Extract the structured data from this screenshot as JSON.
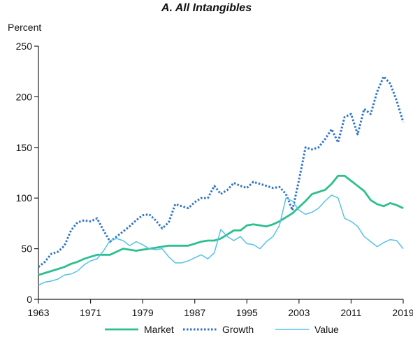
{
  "chart_data": {
    "type": "line",
    "title": "A. All Intangibles",
    "ylabel": "Percent",
    "xlabel": "",
    "xlim": [
      1963,
      2019
    ],
    "ylim": [
      0,
      250
    ],
    "xticks": [
      1963,
      1971,
      1979,
      1987,
      1995,
      2003,
      2011,
      2019
    ],
    "yticks": [
      0,
      50,
      100,
      150,
      200,
      250
    ],
    "grid": false,
    "legend_position": "bottom",
    "series": [
      {
        "name": "Market",
        "color": "#2dbf8f",
        "style": "solid",
        "x": [
          1963,
          1964,
          1965,
          1966,
          1967,
          1968,
          1969,
          1970,
          1971,
          1972,
          1973,
          1974,
          1975,
          1976,
          1977,
          1978,
          1979,
          1980,
          1981,
          1982,
          1983,
          1984,
          1985,
          1986,
          1987,
          1988,
          1989,
          1990,
          1991,
          1992,
          1993,
          1994,
          1995,
          1996,
          1997,
          1998,
          1999,
          2000,
          2001,
          2002,
          2003,
          2004,
          2005,
          2006,
          2007,
          2008,
          2009,
          2010,
          2011,
          2012,
          2013,
          2014,
          2015,
          2016,
          2017,
          2018,
          2019
        ],
        "values": [
          24,
          26,
          28,
          30,
          32,
          35,
          37,
          40,
          42,
          44,
          44,
          44,
          47,
          50,
          49,
          48,
          49,
          50,
          51,
          52,
          53,
          53,
          53,
          53,
          55,
          57,
          58,
          58,
          60,
          64,
          68,
          68,
          73,
          74,
          73,
          72,
          74,
          77,
          81,
          85,
          91,
          97,
          104,
          106,
          108,
          114,
          122,
          122,
          117,
          112,
          107,
          98,
          94,
          92,
          95,
          93,
          90
        ]
      },
      {
        "name": "Growth",
        "color": "#2e74c6",
        "style": "dotted",
        "x": [
          1963,
          1964,
          1965,
          1966,
          1967,
          1968,
          1969,
          1970,
          1971,
          1972,
          1973,
          1974,
          1975,
          1976,
          1977,
          1978,
          1979,
          1980,
          1981,
          1982,
          1983,
          1984,
          1985,
          1986,
          1987,
          1988,
          1989,
          1990,
          1991,
          1992,
          1993,
          1994,
          1995,
          1996,
          1997,
          1998,
          1999,
          2000,
          2001,
          2002,
          2003,
          2004,
          2005,
          2006,
          2007,
          2008,
          2009,
          2010,
          2011,
          2012,
          2013,
          2014,
          2015,
          2016,
          2017,
          2018,
          2019
        ],
        "values": [
          32,
          37,
          45,
          47,
          53,
          68,
          76,
          78,
          77,
          80,
          68,
          57,
          62,
          67,
          72,
          78,
          83,
          84,
          78,
          70,
          76,
          94,
          92,
          90,
          96,
          100,
          100,
          112,
          104,
          108,
          115,
          112,
          110,
          116,
          114,
          112,
          110,
          111,
          104,
          88,
          118,
          150,
          148,
          150,
          158,
          168,
          155,
          180,
          183,
          163,
          188,
          183,
          205,
          220,
          213,
          196,
          175
        ]
      },
      {
        "name": "Value",
        "color": "#56c2e6",
        "style": "solid",
        "x": [
          1963,
          1964,
          1965,
          1966,
          1967,
          1968,
          1969,
          1970,
          1971,
          1972,
          1973,
          1974,
          1975,
          1976,
          1977,
          1978,
          1979,
          1980,
          1981,
          1982,
          1983,
          1984,
          1985,
          1986,
          1987,
          1988,
          1989,
          1990,
          1991,
          1992,
          1993,
          1994,
          1995,
          1996,
          1997,
          1998,
          1999,
          2000,
          2001,
          2002,
          2003,
          2004,
          2005,
          2006,
          2007,
          2008,
          2009,
          2010,
          2011,
          2012,
          2013,
          2014,
          2015,
          2016,
          2017,
          2018,
          2019
        ],
        "values": [
          14,
          17,
          18,
          20,
          24,
          25,
          28,
          34,
          38,
          40,
          48,
          58,
          60,
          58,
          53,
          57,
          54,
          50,
          49,
          50,
          42,
          36,
          36,
          38,
          41,
          44,
          40,
          46,
          69,
          62,
          58,
          62,
          55,
          54,
          50,
          57,
          62,
          73,
          100,
          97,
          88,
          84,
          86,
          90,
          97,
          103,
          100,
          80,
          77,
          72,
          62,
          57,
          52,
          56,
          59,
          58,
          50
        ]
      }
    ]
  }
}
